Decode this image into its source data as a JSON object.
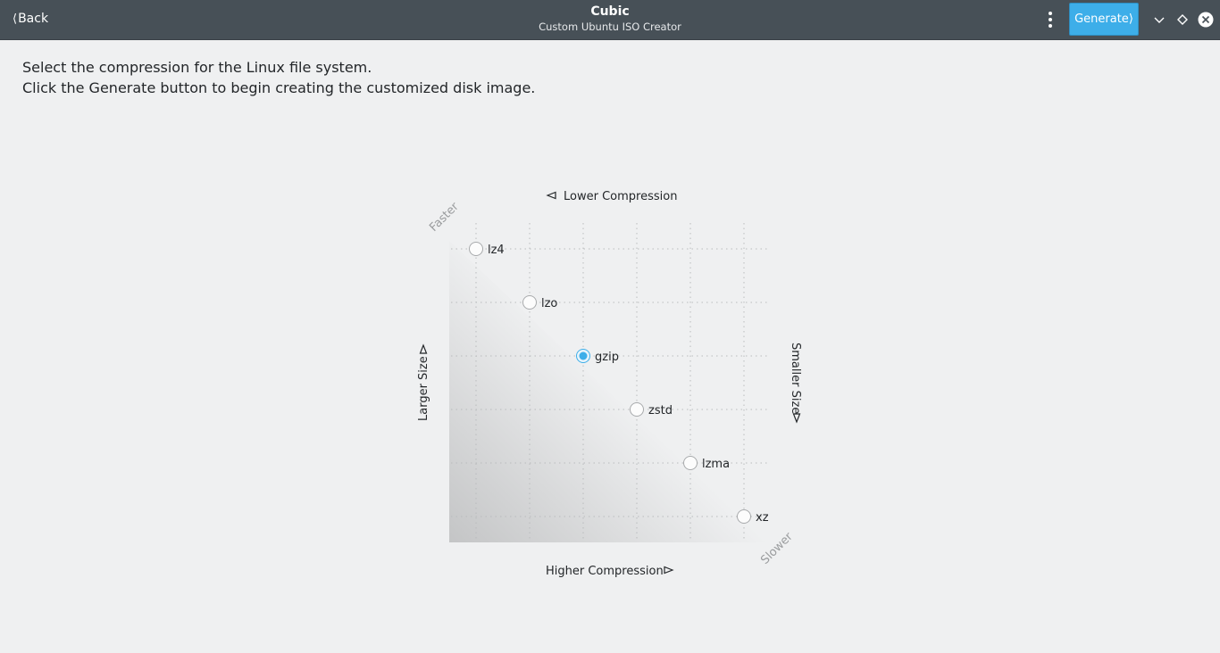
{
  "header": {
    "back_label": "Back",
    "title": "Cubic",
    "subtitle": "Custom Ubuntu ISO Creator",
    "generate_label": "Generate"
  },
  "instructions": {
    "line1": "Select the compression for the Linux file system.",
    "line2": "Click the Generate button to begin creating the customized disk image."
  },
  "chart": {
    "top_label": "Lower Compression",
    "bottom_label": "Higher Compression",
    "left_label": "Larger Size",
    "right_label": "Smaller Size",
    "corner_top": "Faster",
    "corner_bottom": "Slower",
    "selected": "gzip",
    "options": [
      "lz4",
      "lzo",
      "gzip",
      "zstd",
      "lzma",
      "xz"
    ]
  },
  "colors": {
    "header_bg": "#475057",
    "accent": "#3daee9",
    "background": "#eff0f1"
  }
}
